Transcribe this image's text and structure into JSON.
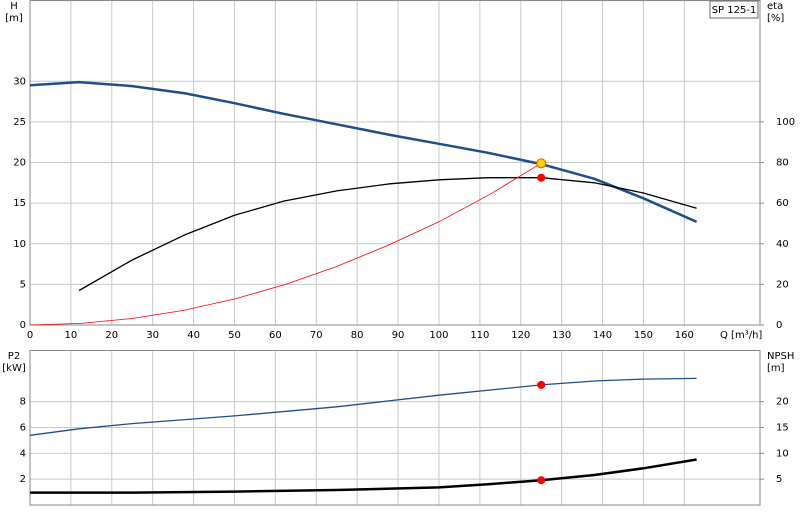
{
  "chart_data": [
    {
      "type": "line",
      "label_box": "SP 125-1",
      "y_label": "H",
      "y_unit": "[m]",
      "y2_label": "eta",
      "y2_unit": "[%]",
      "x_label": "Q [m³/h]",
      "xlim": [
        0,
        178.5
      ],
      "xticks": [
        0,
        10,
        20,
        30,
        40,
        50,
        60,
        70,
        80,
        90,
        100,
        110,
        120,
        130,
        140,
        150,
        160
      ],
      "ylim": [
        0,
        40
      ],
      "yticks": [
        0,
        5,
        10,
        15,
        20,
        25,
        30
      ],
      "y2lim": [
        0,
        160
      ],
      "y2ticks": [
        0,
        20,
        40,
        60,
        80,
        100
      ],
      "grid": true,
      "series": [
        {
          "color": "#1f4e8c",
          "width": 2.5,
          "x": [
            0,
            12,
            25,
            38,
            50,
            62,
            75,
            88,
            100,
            112,
            125,
            138,
            150,
            163
          ],
          "values": [
            29.5,
            29.9,
            29.4,
            28.5,
            27.3,
            26,
            24.7,
            23.4,
            22.3,
            21.2,
            19.8,
            18,
            15.6,
            12.7
          ]
        },
        {
          "color": "#000000",
          "width": 1.3,
          "axis": "y2",
          "x": [
            12,
            25,
            38,
            50,
            62,
            75,
            88,
            100,
            112,
            125,
            138,
            150,
            163
          ],
          "values": [
            17,
            32,
            44.5,
            54,
            61,
            66,
            69.5,
            71.5,
            72.5,
            72.5,
            70,
            65,
            57.5
          ]
        },
        {
          "color": "#ff0000",
          "width": 0.8,
          "x": [
            0,
            12.5,
            25,
            37.5,
            50,
            62.5,
            75,
            87.5,
            100,
            112.5,
            125
          ],
          "values": [
            0,
            0.2,
            0.8,
            1.8,
            3.2,
            5,
            7.2,
            9.8,
            12.7,
            16.1,
            19.9
          ]
        }
      ],
      "points": [
        {
          "x": 125,
          "y": 19.9,
          "color": "#ffcc00",
          "size": 4.5
        },
        {
          "x": 125,
          "y": 72.5,
          "axis": "y2",
          "color": "#ff0000",
          "size": 3.5
        }
      ]
    },
    {
      "type": "line",
      "y_label": "P2",
      "y_unit": "[kW]",
      "y2_label": "NPSH",
      "y2_unit": "[m]",
      "xlim": [
        0,
        178.5
      ],
      "ylim": [
        0,
        12
      ],
      "yticks": [
        2,
        4,
        6,
        8
      ],
      "y2lim": [
        0,
        30
      ],
      "y2ticks": [
        5,
        10,
        15,
        20
      ],
      "grid": true,
      "series": [
        {
          "color": "#1f4e8c",
          "width": 1.3,
          "x": [
            0,
            12,
            25,
            50,
            75,
            100,
            125,
            138,
            150,
            163
          ],
          "values": [
            5.4,
            5.9,
            6.3,
            6.9,
            7.6,
            8.5,
            9.3,
            9.6,
            9.75,
            9.8
          ]
        },
        {
          "color": "#000000",
          "width": 2.5,
          "axis": "y2",
          "x": [
            0,
            25,
            50,
            75,
            100,
            112,
            125,
            138,
            150,
            163
          ],
          "values": [
            2.4,
            2.4,
            2.6,
            2.9,
            3.4,
            4,
            4.8,
            5.8,
            7.1,
            8.8
          ]
        }
      ],
      "points": [
        {
          "x": 125,
          "y": 9.3,
          "color": "#ff0000",
          "size": 3.5
        },
        {
          "x": 125,
          "y": 4.8,
          "axis": "y2",
          "color": "#ff0000",
          "size": 3.5
        }
      ]
    }
  ]
}
